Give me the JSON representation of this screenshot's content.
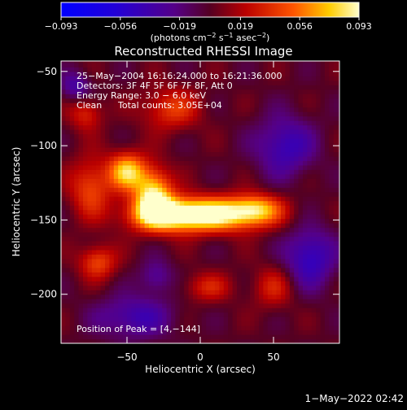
{
  "chart_data": {
    "type": "heatmap",
    "title": "Reconstructed RHESSI Image",
    "xlabel": "Heliocentric X (arcsec)",
    "ylabel": "Heliocentric Y (arcsec)",
    "xlim": [
      -95,
      95
    ],
    "ylim": [
      -233,
      -43
    ],
    "x_ticks": [
      -50,
      0,
      50
    ],
    "y_ticks": [
      -200,
      -150,
      -100,
      -50
    ],
    "x_tick_labels": [
      "−50",
      "0",
      "50"
    ],
    "y_tick_labels": [
      "−200",
      "−150",
      "−100",
      "−50"
    ],
    "colorbar": {
      "min": -0.093,
      "max": 0.093,
      "ticks": [
        -0.093,
        -0.056,
        -0.019,
        0.019,
        0.056,
        0.093
      ],
      "tick_labels": [
        "−0.093",
        "−0.056",
        "−0.019",
        "0.019",
        "0.056",
        "0.093"
      ],
      "label_main": "(photons cm",
      "label_exp1": "−2",
      "label_mid": " s",
      "label_exp2": "−1",
      "label_mid2": " asec",
      "label_exp3": "−2",
      "label_end": ")"
    },
    "annotations": {
      "time_range": "25−May−2004 16:16:24.000 to 16:21:36.000",
      "detectors": "Detectors: 3F 4F 5F 6F 7F 8F, Att 0",
      "energy": "Energy Range: 3.0 − 6.0 keV",
      "method": "Clean",
      "counts": "Total counts: 3.05E+04",
      "peak": "Position of Peak = [4,−144]"
    },
    "peak_position": [
      4,
      -144
    ],
    "sources": [
      {
        "x": 8,
        "y": -146,
        "peak": 0.093,
        "sx": 26,
        "sy": 8
      },
      {
        "x": -50,
        "y": -117,
        "peak": 0.075,
        "sx": 9,
        "sy": 9
      },
      {
        "x": -32,
        "y": -132,
        "peak": 0.08,
        "sx": 9,
        "sy": 12
      },
      {
        "x": -25,
        "y": -146,
        "peak": 0.065,
        "sx": 18,
        "sy": 8
      },
      {
        "x": 38,
        "y": -142,
        "peak": 0.05,
        "sx": 12,
        "sy": 7
      },
      {
        "x": -75,
        "y": -128,
        "peak": 0.045,
        "sx": 10,
        "sy": 14
      },
      {
        "x": -70,
        "y": -178,
        "peak": 0.045,
        "sx": 9,
        "sy": 8
      },
      {
        "x": -20,
        "y": -75,
        "peak": 0.04,
        "sx": 14,
        "sy": 10
      },
      {
        "x": -78,
        "y": -78,
        "peak": 0.035,
        "sx": 8,
        "sy": 8
      },
      {
        "x": 5,
        "y": -195,
        "peak": 0.03,
        "sx": 12,
        "sy": 7
      },
      {
        "x": 50,
        "y": -195,
        "peak": 0.03,
        "sx": 10,
        "sy": 10
      },
      {
        "x": 58,
        "y": -100,
        "peak": -0.045,
        "sx": 14,
        "sy": 14
      },
      {
        "x": 75,
        "y": -175,
        "peak": -0.05,
        "sx": 12,
        "sy": 14
      },
      {
        "x": -45,
        "y": -215,
        "peak": -0.04,
        "sx": 18,
        "sy": 10
      },
      {
        "x": -85,
        "y": -60,
        "peak": -0.035,
        "sx": 7,
        "sy": 7
      },
      {
        "x": -30,
        "y": -188,
        "peak": -0.03,
        "sx": 8,
        "sy": 8
      }
    ]
  },
  "footer": {
    "timestamp": "1−May−2022 02:42"
  }
}
